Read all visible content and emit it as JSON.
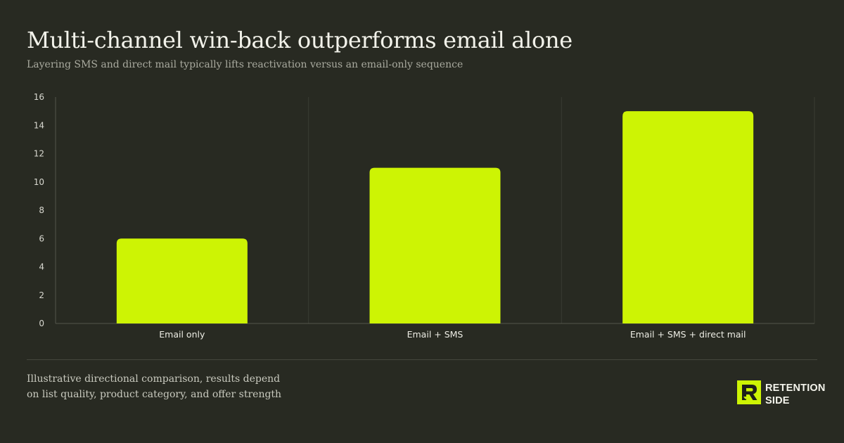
{
  "header": {
    "title": "Multi-channel win-back outperforms email alone",
    "subtitle": "Layering SMS and direct mail typically lifts reactivation versus an email-only sequence"
  },
  "footnote": "Illustrative directional comparison, results depend on list quality, product category, and offer strength",
  "brand": {
    "line1": "RETENTION",
    "line2": "SIDE",
    "logo_icon": "retention-side-logo-icon"
  },
  "colors": {
    "background": "#282a22",
    "bar": "#cdf404",
    "grid": "#3a3c33",
    "axis": "#55574c"
  },
  "chart_data": {
    "type": "bar",
    "categories": [
      "Email only",
      "Email + SMS",
      "Email + SMS + direct mail"
    ],
    "values": [
      6,
      11,
      15
    ],
    "ylim": [
      0,
      16
    ],
    "yticks": [
      0,
      2,
      4,
      6,
      8,
      10,
      12,
      14,
      16
    ],
    "grid": "vertical separators between categories",
    "title": "",
    "xlabel": "",
    "ylabel": ""
  }
}
